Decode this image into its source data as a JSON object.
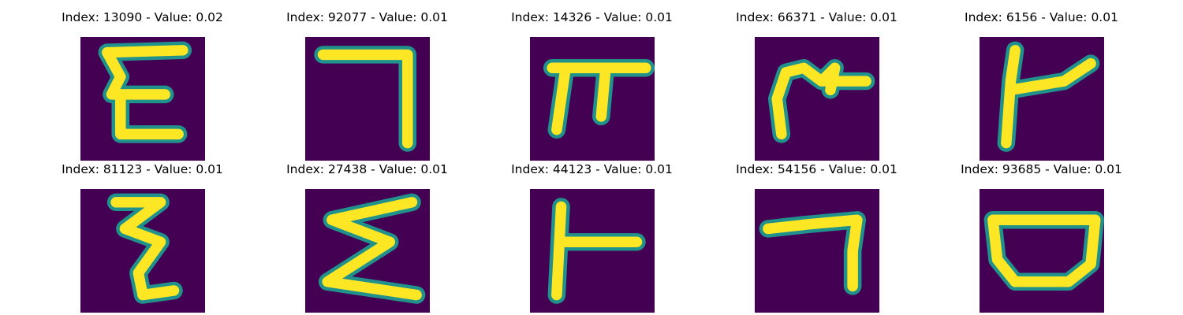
{
  "palette": {
    "background": "#440154",
    "stroke_core": "#fde725",
    "stroke_mid": "#b5de2b",
    "stroke_edge": "#21918c"
  },
  "samples": [
    {
      "index": "13090",
      "value": "0.02",
      "title": "Index: 13090 - Value: 0.02"
    },
    {
      "index": "92077",
      "value": "0.01",
      "title": "Index: 92077 - Value: 0.01"
    },
    {
      "index": "14326",
      "value": "0.01",
      "title": "Index: 14326 - Value: 0.01"
    },
    {
      "index": "66371",
      "value": "0.01",
      "title": "Index: 66371 - Value: 0.01"
    },
    {
      "index": "6156",
      "value": "0.01",
      "title": "Index: 6156 - Value: 0.01"
    },
    {
      "index": "81123",
      "value": "0.01",
      "title": "Index: 81123 - Value: 0.01"
    },
    {
      "index": "27438",
      "value": "0.01",
      "title": "Index: 27438 - Value: 0.01"
    },
    {
      "index": "44123",
      "value": "0.01",
      "title": "Index: 44123 - Value: 0.01"
    },
    {
      "index": "54156",
      "value": "0.01",
      "title": "Index: 54156 - Value: 0.01"
    },
    {
      "index": "93685",
      "value": "0.01",
      "title": "Index: 93685 - Value: 0.01"
    }
  ]
}
